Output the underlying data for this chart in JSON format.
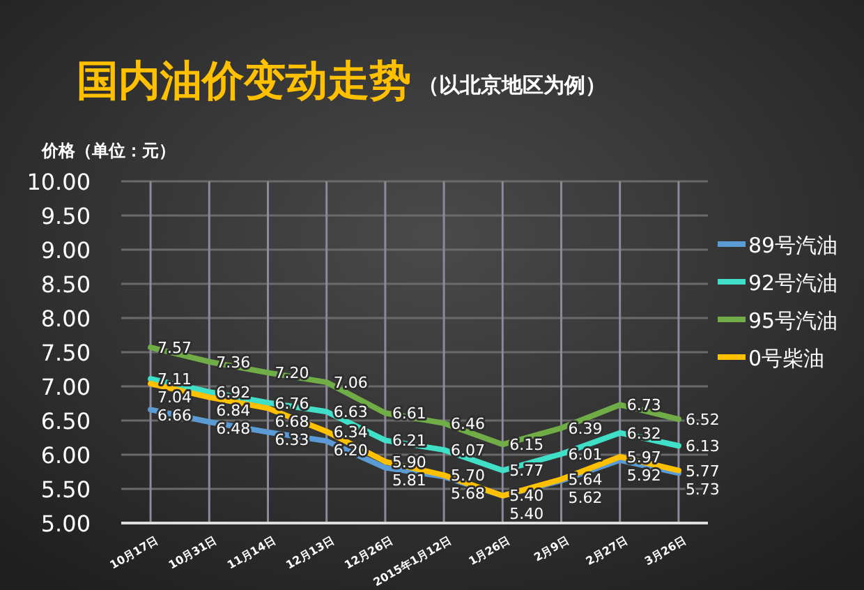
{
  "chart_data": {
    "type": "line",
    "title": "国内油价变动走势",
    "subtitle": "（以北京地区为例）",
    "ylabel": "价格（单位：元）",
    "categories": [
      "10月17日",
      "10月31日",
      "11月14日",
      "12月13日",
      "12月26日",
      "2015年1月12日",
      "1月26日",
      "2月9日",
      "2月27日",
      "3月26日"
    ],
    "series": [
      {
        "name": "89号汽油",
        "color": "#5b9bd5",
        "values": [
          6.66,
          6.48,
          6.33,
          6.2,
          5.81,
          5.68,
          5.4,
          5.62,
          5.92,
          5.73
        ],
        "value_labels": [
          "6.66",
          "6.48",
          "6.33",
          "6.20",
          "5.81",
          "5.68",
          "5.40",
          "5.62",
          "5.92",
          "5.73"
        ]
      },
      {
        "name": "92号汽油",
        "color": "#40e0c8",
        "values": [
          7.11,
          6.92,
          6.76,
          6.63,
          6.21,
          6.07,
          5.77,
          6.01,
          6.32,
          6.13
        ],
        "value_labels": [
          "7.11",
          "6.92",
          "6.76",
          "6.63",
          "6.21",
          "6.07",
          "5.77",
          "6.01",
          "6.32",
          "6.13"
        ]
      },
      {
        "name": "95号汽油",
        "color": "#70ad47",
        "values": [
          7.57,
          7.36,
          7.2,
          7.06,
          6.61,
          6.46,
          6.15,
          6.39,
          6.73,
          6.52
        ],
        "value_labels": [
          "7.57",
          "7.36",
          "7.20",
          "7.06",
          "6.61",
          "6.46",
          "6.15",
          "6.39",
          "6.73",
          "6.52"
        ]
      },
      {
        "name": "0号柴油",
        "color": "#ffc000",
        "values": [
          7.04,
          6.84,
          6.68,
          6.34,
          5.9,
          5.7,
          5.4,
          5.64,
          5.97,
          5.77
        ],
        "value_labels": [
          "7.04",
          "6.84",
          "6.68",
          "6.34",
          "5.90",
          "5.70",
          "5.40",
          "5.64",
          "5.97",
          "5.77"
        ]
      }
    ],
    "ylim": [
      5,
      10
    ],
    "yticks": [
      {
        "value": 5,
        "label": "5.00"
      },
      {
        "value": 5.5,
        "label": "5.50"
      },
      {
        "value": 6,
        "label": "6.00"
      },
      {
        "value": 6.5,
        "label": "6.50"
      },
      {
        "value": 7,
        "label": "7.00"
      },
      {
        "value": 7.5,
        "label": "7.50"
      },
      {
        "value": 8,
        "label": "8.00"
      },
      {
        "value": 8.5,
        "label": "8.50"
      },
      {
        "value": 9,
        "label": "9.00"
      },
      {
        "value": 9.5,
        "label": "9.50"
      },
      {
        "value": 10,
        "label": "10.00"
      }
    ],
    "grid": true,
    "legend": "right",
    "marker": "none",
    "line_style": "solid"
  }
}
